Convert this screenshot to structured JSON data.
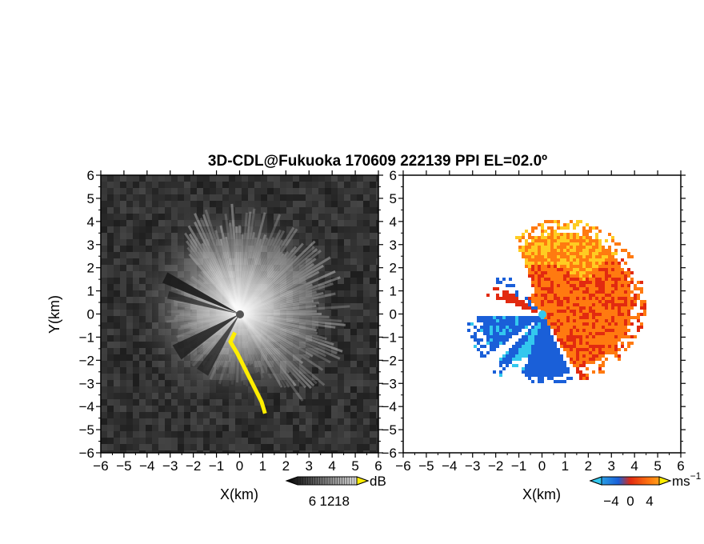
{
  "chart_data": {
    "type": "heatmap",
    "title": "3D-CDL@Fukuoka 170609 222139 PPI EL=02.0º",
    "panels": [
      {
        "name": "reflectivity",
        "xlabel": "X(km)",
        "ylabel": "Y(km)",
        "xlim": [
          -6,
          6
        ],
        "ylim": [
          -6,
          6
        ],
        "xticks": [
          "-6",
          "-5",
          "-4",
          "-3",
          "-2",
          "-1",
          "0",
          "1",
          "2",
          "3",
          "4",
          "5",
          "6"
        ],
        "yticks": [
          "6",
          "5",
          "4",
          "3",
          "2",
          "1",
          "0",
          "-1",
          "-2",
          "-3",
          "-4",
          "-5",
          "-6"
        ],
        "colormap": "grayscale",
        "colorbar": {
          "unit": "dB",
          "ticks": [
            "6",
            "12",
            "18"
          ],
          "range": [
            0,
            24
          ]
        },
        "highlight_color": "#ffee00",
        "highlight_path": [
          [
            -0.2,
            -0.8
          ],
          [
            -0.4,
            -1.2
          ],
          [
            -0.1,
            -1.7
          ],
          [
            0.2,
            -2.3
          ],
          [
            0.45,
            -2.8
          ],
          [
            0.7,
            -3.3
          ],
          [
            0.95,
            -3.8
          ],
          [
            1.1,
            -4.3
          ]
        ]
      },
      {
        "name": "doppler_velocity",
        "xlabel": "X(km)",
        "xlim": [
          -6,
          6
        ],
        "ylim": [
          -6,
          6
        ],
        "xticks": [
          "-6",
          "-5",
          "-4",
          "-3",
          "-2",
          "-1",
          "0",
          "1",
          "2",
          "3",
          "4",
          "5",
          "6"
        ],
        "yticks": [
          "6",
          "5",
          "4",
          "3",
          "2",
          "1",
          "0",
          "-1",
          "-2",
          "-3",
          "-4",
          "-5",
          "-6"
        ],
        "colormap": "diverging blue-red",
        "colorbar": {
          "unit": "ms",
          "unit_exp": "−1",
          "ticks": [
            "−4",
            "0",
            "4"
          ],
          "range": [
            -6,
            6
          ]
        },
        "colors": {
          "negative": "#1a5fd8",
          "near_zero_negative": "#33c8ee",
          "positive": "#ff7a10",
          "strong_positive": "#e22a10",
          "weak_positive": "#ffcc22"
        }
      }
    ]
  }
}
